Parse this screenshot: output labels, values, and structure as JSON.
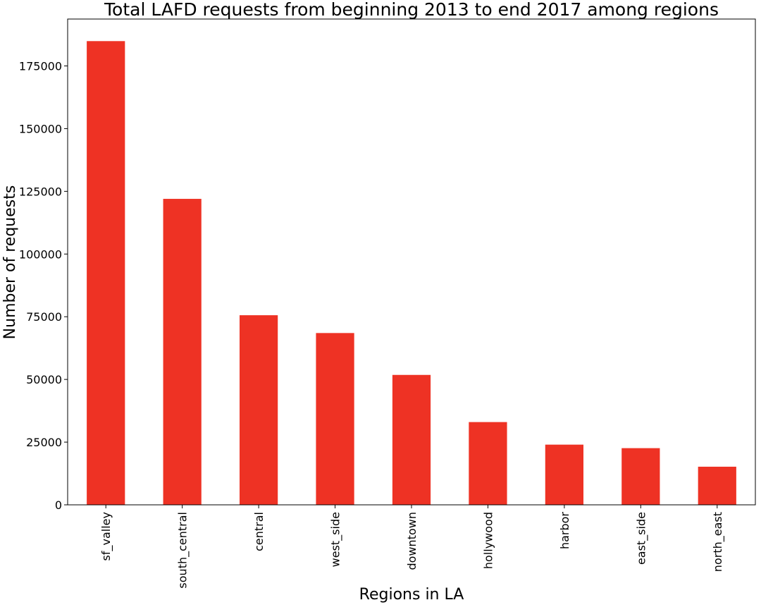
{
  "chart_data": {
    "type": "bar",
    "title": "Total LAFD requests from beginning 2013 to end 2017 among regions",
    "xlabel": "Regions in LA",
    "ylabel": "Number of requests",
    "categories": [
      "sf_valley",
      "south_central",
      "central",
      "west_side",
      "downtown",
      "hollywood",
      "harbor",
      "east_side",
      "north_east"
    ],
    "values": [
      184900,
      122000,
      75600,
      68500,
      51800,
      33000,
      24000,
      22600,
      15200
    ],
    "ylim": [
      0,
      193700
    ],
    "yticks": [
      0,
      25000,
      50000,
      75000,
      100000,
      125000,
      150000,
      175000
    ],
    "ytick_labels": [
      "0",
      "25000",
      "50000",
      "75000",
      "100000",
      "125000",
      "150000",
      "175000"
    ],
    "bar_color": "#ee3224",
    "grid": false,
    "legend": "none"
  }
}
